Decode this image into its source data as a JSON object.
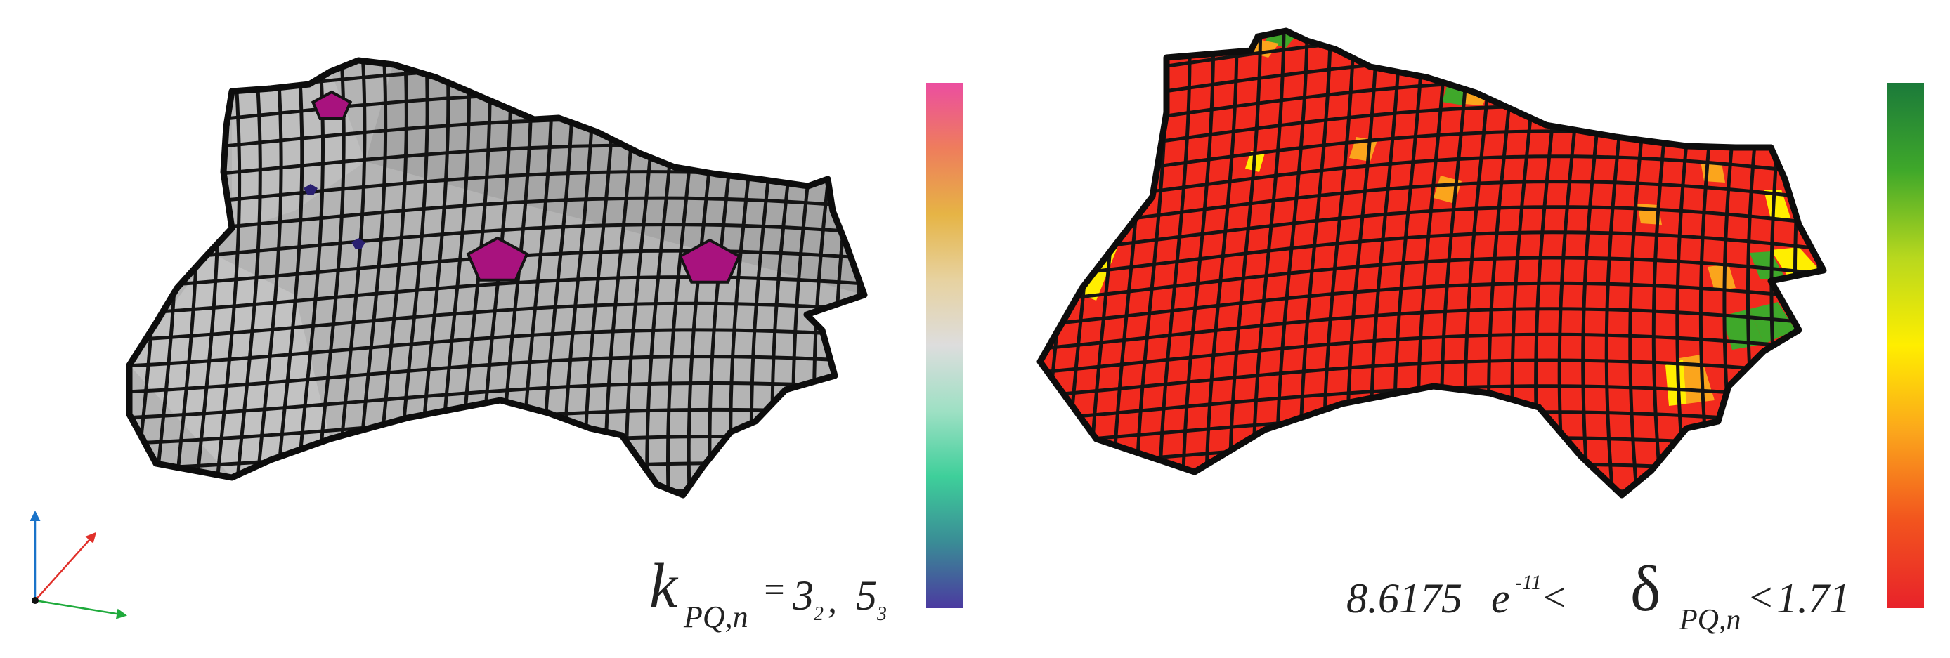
{
  "left_panel": {
    "formula": {
      "symbol": "k",
      "subscript": "PQ,n",
      "eq": "=",
      "val1": "3",
      "val1_sub": "2",
      "sep": ",",
      "val2": "5",
      "val2_sub": "3"
    },
    "mesh_fill": "#b4b4b4",
    "singular_fill": "#a8127e",
    "colorbar_stops": [
      "#4b3aa0",
      "#3a8c96",
      "#3ecf9a",
      "#9ee0c4",
      "#dddddd",
      "#e7d2a0",
      "#e6b445",
      "#ee7d5c",
      "#ec4ea0"
    ]
  },
  "right_panel": {
    "formula": {
      "lower": "8.6175",
      "exp_base": "e",
      "exponent": "-11",
      "lt1": "<",
      "symbol": "δ",
      "subscript": "PQ,n",
      "lt2": "<",
      "upper": "1.71"
    },
    "mesh_fill": "#f22a1e",
    "colorbar_stops": [
      "#1b7a3a",
      "#3fa82a",
      "#b8d81e",
      "#ffee00",
      "#fba51c",
      "#f2541e",
      "#e8222a"
    ]
  },
  "axes": {
    "colors": [
      "#1a73c9",
      "#e0302a",
      "#1faa3c"
    ]
  }
}
